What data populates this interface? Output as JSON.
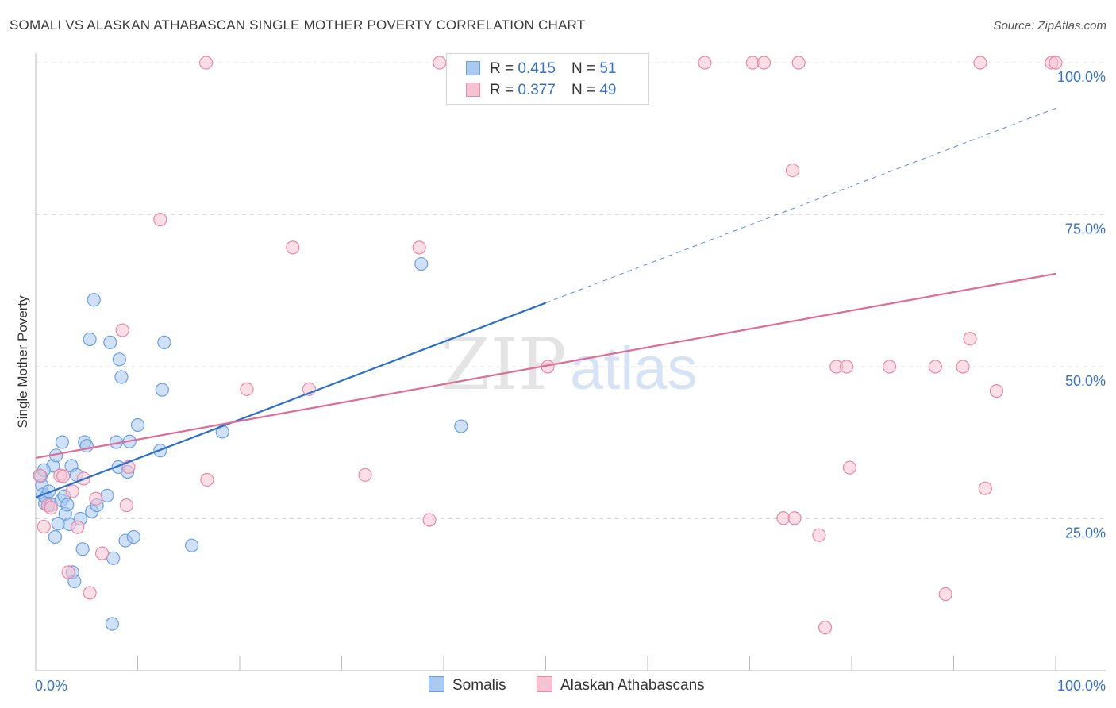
{
  "title": "SOMALI VS ALASKAN ATHABASCAN SINGLE MOTHER POVERTY CORRELATION CHART",
  "source": "Source: ZipAtlas.com",
  "watermark": {
    "zip": "ZIP",
    "atlas": "atlas"
  },
  "legend": {
    "r_label": "R =",
    "n_label": "N =",
    "somalis": {
      "r": "0.415",
      "n": "51"
    },
    "athabascans": {
      "r": "0.377",
      "n": "49"
    }
  },
  "bottom_legend": {
    "somalis": "Somalis",
    "athabascans": "Alaskan Athabascans"
  },
  "colors": {
    "somalis_fill": "#aac9f0",
    "somalis_stroke": "#6a9fde",
    "somalis_line": "#2a6fcc",
    "athabascans_fill": "#f7c3d2",
    "athabascans_stroke": "#e889a8",
    "athabascans_line": "#e06b96",
    "axis_text": "#3a72c4",
    "grid": "#dddddd"
  },
  "chart_data": {
    "type": "scatter",
    "xlabel": "",
    "ylabel": "Single Mother Poverty",
    "xlim": [
      0,
      100
    ],
    "ylim": [
      0,
      100
    ],
    "x_tick_labels": [
      "0.0%",
      "100.0%"
    ],
    "y_tick_labels": [
      "25.0%",
      "50.0%",
      "75.0%",
      "100.0%"
    ],
    "y_ticks": [
      25,
      50,
      75,
      100
    ],
    "x_minor_ticks": [
      0,
      10,
      20,
      30,
      40,
      50,
      60,
      70,
      80,
      90,
      100
    ],
    "series": [
      {
        "name": "Somalis",
        "r": 0.415,
        "n": 51,
        "points": [
          [
            0.5,
            32.0
          ],
          [
            0.6,
            30.5
          ],
          [
            0.7,
            29.0
          ],
          [
            0.9,
            27.5
          ],
          [
            1.0,
            28.5
          ],
          [
            1.2,
            27.2
          ],
          [
            1.5,
            27.3
          ],
          [
            1.7,
            33.7
          ],
          [
            1.9,
            22.0
          ],
          [
            2.0,
            35.4
          ],
          [
            2.2,
            24.2
          ],
          [
            2.5,
            28.0
          ],
          [
            2.6,
            37.6
          ],
          [
            2.8,
            28.7
          ],
          [
            2.9,
            25.8
          ],
          [
            3.1,
            27.3
          ],
          [
            3.3,
            24.1
          ],
          [
            3.5,
            33.7
          ],
          [
            3.6,
            16.2
          ],
          [
            3.8,
            14.7
          ],
          [
            4.0,
            32.2
          ],
          [
            4.4,
            25.0
          ],
          [
            4.6,
            20.0
          ],
          [
            4.8,
            37.6
          ],
          [
            5.0,
            37.0
          ],
          [
            5.3,
            54.5
          ],
          [
            5.5,
            26.2
          ],
          [
            5.7,
            61.0
          ],
          [
            6.0,
            27.2
          ],
          [
            7.0,
            28.8
          ],
          [
            7.3,
            54.0
          ],
          [
            7.5,
            7.7
          ],
          [
            7.6,
            18.5
          ],
          [
            7.9,
            37.6
          ],
          [
            8.1,
            33.5
          ],
          [
            8.2,
            51.2
          ],
          [
            8.4,
            48.3
          ],
          [
            8.8,
            21.4
          ],
          [
            9.0,
            32.7
          ],
          [
            9.2,
            37.7
          ],
          [
            9.6,
            22.0
          ],
          [
            10.0,
            40.4
          ],
          [
            12.2,
            36.2
          ],
          [
            12.4,
            46.2
          ],
          [
            12.6,
            54.0
          ],
          [
            15.3,
            20.6
          ],
          [
            18.3,
            39.3
          ],
          [
            37.8,
            66.9
          ],
          [
            41.7,
            40.2
          ],
          [
            0.8,
            33.0
          ],
          [
            1.3,
            29.5
          ]
        ]
      },
      {
        "name": "Alaskan Athabascans",
        "r": 0.377,
        "n": 49,
        "points": [
          [
            0.4,
            32.1
          ],
          [
            0.8,
            23.7
          ],
          [
            1.2,
            27.2
          ],
          [
            1.5,
            26.8
          ],
          [
            2.4,
            32.1
          ],
          [
            2.7,
            32.0
          ],
          [
            3.2,
            16.2
          ],
          [
            3.6,
            29.5
          ],
          [
            4.1,
            23.6
          ],
          [
            4.7,
            31.6
          ],
          [
            5.3,
            12.8
          ],
          [
            5.9,
            28.3
          ],
          [
            6.5,
            19.3
          ],
          [
            8.5,
            56.0
          ],
          [
            8.9,
            27.2
          ],
          [
            9.1,
            33.5
          ],
          [
            12.2,
            74.2
          ],
          [
            16.7,
            100.0
          ],
          [
            16.8,
            31.4
          ],
          [
            20.7,
            46.3
          ],
          [
            25.2,
            69.6
          ],
          [
            26.8,
            46.3
          ],
          [
            32.3,
            32.2
          ],
          [
            37.6,
            69.6
          ],
          [
            38.6,
            24.8
          ],
          [
            39.6,
            100.0
          ],
          [
            50.2,
            50.0
          ],
          [
            65.6,
            100.0
          ],
          [
            70.3,
            100.0
          ],
          [
            71.4,
            100.0
          ],
          [
            73.3,
            25.1
          ],
          [
            74.2,
            82.3
          ],
          [
            74.4,
            25.1
          ],
          [
            74.8,
            100.0
          ],
          [
            76.8,
            22.3
          ],
          [
            77.4,
            7.1
          ],
          [
            78.5,
            50.0
          ],
          [
            79.5,
            50.0
          ],
          [
            79.8,
            33.4
          ],
          [
            83.7,
            50.0
          ],
          [
            88.2,
            50.0
          ],
          [
            89.2,
            12.6
          ],
          [
            90.9,
            50.0
          ],
          [
            91.6,
            54.6
          ],
          [
            92.6,
            100.0
          ],
          [
            93.1,
            30.0
          ],
          [
            94.2,
            46.0
          ],
          [
            99.6,
            100.0
          ],
          [
            100.0,
            100.0
          ]
        ]
      }
    ],
    "trend_lines": [
      {
        "series": "Somalis",
        "solid": [
          [
            0,
            28.5
          ],
          [
            50,
            60.5
          ]
        ],
        "dashed": [
          [
            50,
            60.5
          ],
          [
            100,
            92.5
          ]
        ]
      },
      {
        "series": "Alaskan Athabascans",
        "solid": [
          [
            0,
            35.0
          ],
          [
            100,
            65.3
          ]
        ]
      }
    ]
  }
}
